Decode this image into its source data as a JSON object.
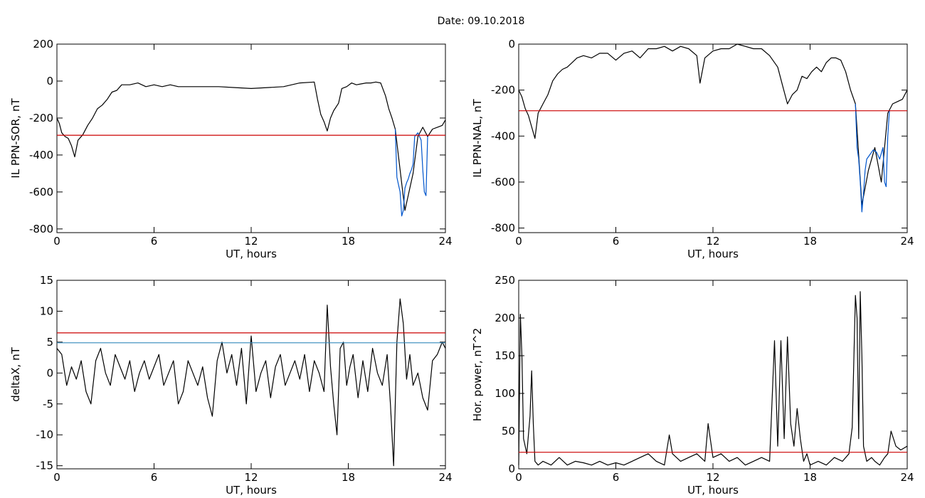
{
  "page": {
    "title": "Date:  09.10.2018"
  },
  "chart_data": [
    {
      "id": "p1",
      "type": "line",
      "xlabel": "UT, hours",
      "ylabel": "IL PPN-SOR, nT",
      "xlim": [
        0,
        24
      ],
      "ylim": [
        -820,
        200
      ],
      "xticks": [
        0,
        6,
        12,
        18,
        24
      ],
      "yticks": [
        -800,
        -600,
        -400,
        -200,
        0,
        200
      ],
      "series": [
        {
          "color": "#000000",
          "x": [
            0,
            0.15,
            0.3,
            0.5,
            0.7,
            0.9,
            1.1,
            1.3,
            1.6,
            1.9,
            2.2,
            2.5,
            2.8,
            3.1,
            3.4,
            3.7,
            4.0,
            4.5,
            5,
            5.5,
            6,
            6.5,
            7,
            7.5,
            8,
            9,
            10,
            11,
            12,
            13,
            14,
            15,
            15.9,
            16.1,
            16.3,
            16.5,
            16.7,
            16.9,
            17.1,
            17.4,
            17.6,
            17.9,
            18.2,
            18.5,
            18.8,
            19.1,
            19.4,
            19.7,
            20.0,
            20.3,
            20.5,
            20.7,
            20.9,
            21.5,
            22,
            22.3,
            22.6,
            22.9,
            23.2,
            23.5,
            23.8,
            24
          ],
          "y": [
            -200,
            -230,
            -280,
            -300,
            -310,
            -350,
            -410,
            -320,
            -290,
            -240,
            -200,
            -150,
            -130,
            -100,
            -60,
            -50,
            -20,
            -20,
            -10,
            -30,
            -20,
            -30,
            -20,
            -30,
            -30,
            -30,
            -30,
            -35,
            -40,
            -35,
            -30,
            -10,
            -5,
            -100,
            -180,
            -220,
            -270,
            -200,
            -160,
            -120,
            -40,
            -30,
            -10,
            -20,
            -15,
            -10,
            -10,
            -5,
            -10,
            -80,
            -150,
            -200,
            -260,
            -700,
            -500,
            -300,
            -250,
            -300,
            -260,
            -250,
            -240,
            -210
          ]
        },
        {
          "color": "#0055cc",
          "x": [
            20.9,
            21.0,
            21.1,
            21.2,
            21.3,
            21.4,
            21.5,
            21.6,
            21.7,
            21.8,
            21.9,
            22.0,
            22.1,
            22.3,
            22.5,
            22.6,
            22.7,
            22.8,
            22.9
          ],
          "y": [
            -260,
            -520,
            -560,
            -600,
            -730,
            -700,
            -580,
            -550,
            -530,
            -500,
            -480,
            -450,
            -300,
            -280,
            -320,
            -480,
            -600,
            -620,
            -300
          ]
        },
        {
          "color": "#cc0000",
          "x": [
            0,
            24
          ],
          "y": [
            -293,
            -293
          ]
        }
      ]
    },
    {
      "id": "p2",
      "type": "line",
      "xlabel": "UT, hours",
      "ylabel": "IL PPN-NAL, nT",
      "xlim": [
        0,
        24
      ],
      "ylim": [
        -820,
        0
      ],
      "xticks": [
        0,
        6,
        12,
        18,
        24
      ],
      "yticks": [
        -800,
        -600,
        -400,
        -200,
        0
      ],
      "series": [
        {
          "color": "#000000",
          "x": [
            0,
            0.2,
            0.4,
            0.6,
            0.8,
            1.0,
            1.2,
            1.5,
            1.8,
            2.1,
            2.4,
            2.7,
            3.0,
            3.3,
            3.6,
            4.0,
            4.5,
            5,
            5.5,
            6,
            6.5,
            7,
            7.5,
            8,
            8.5,
            9,
            9.5,
            10,
            10.5,
            11,
            11.2,
            11.5,
            12,
            12.5,
            13,
            13.5,
            14,
            14.5,
            15,
            15.5,
            16,
            16.3,
            16.6,
            16.9,
            17.2,
            17.5,
            17.8,
            18.1,
            18.4,
            18.7,
            19.0,
            19.3,
            19.6,
            19.9,
            20.2,
            20.5,
            20.8,
            21.2,
            21.6,
            22,
            22.4,
            22.8,
            23.1,
            23.4,
            23.7,
            24
          ],
          "y": [
            -200,
            -230,
            -280,
            -310,
            -360,
            -410,
            -300,
            -260,
            -220,
            -160,
            -130,
            -110,
            -100,
            -80,
            -60,
            -50,
            -60,
            -40,
            -40,
            -70,
            -40,
            -30,
            -60,
            -20,
            -20,
            -10,
            -30,
            -10,
            -20,
            -50,
            -170,
            -60,
            -30,
            -20,
            -20,
            0,
            -10,
            -20,
            -20,
            -50,
            -100,
            -180,
            -260,
            -220,
            -200,
            -140,
            -150,
            -120,
            -100,
            -120,
            -80,
            -60,
            -60,
            -70,
            -120,
            -200,
            -260,
            -700,
            -550,
            -450,
            -600,
            -300,
            -260,
            -250,
            -240,
            -200
          ]
        },
        {
          "color": "#0055cc",
          "x": [
            20.8,
            20.9,
            21.0,
            21.1,
            21.2,
            21.3,
            21.4,
            21.5,
            21.7,
            21.9,
            22.1,
            22.3,
            22.5,
            22.6,
            22.7,
            22.8,
            22.9
          ],
          "y": [
            -260,
            -450,
            -500,
            -600,
            -730,
            -650,
            -550,
            -500,
            -480,
            -460,
            -470,
            -500,
            -450,
            -600,
            -620,
            -400,
            -290
          ]
        },
        {
          "color": "#cc0000",
          "x": [
            0,
            24
          ],
          "y": [
            -290,
            -290
          ]
        }
      ]
    },
    {
      "id": "p3",
      "type": "line",
      "xlabel": "UT, hours",
      "ylabel": "deltaX, nT",
      "xlim": [
        0,
        24
      ],
      "ylim": [
        -15.5,
        15
      ],
      "xticks": [
        0,
        6,
        12,
        18,
        24
      ],
      "yticks": [
        -15,
        -10,
        -5,
        0,
        5,
        10,
        15
      ],
      "series": [
        {
          "color": "#000000",
          "x": [
            0,
            0.3,
            0.6,
            0.9,
            1.2,
            1.5,
            1.8,
            2.1,
            2.4,
            2.7,
            3.0,
            3.3,
            3.6,
            3.9,
            4.2,
            4.5,
            4.8,
            5.1,
            5.4,
            5.7,
            6.0,
            6.3,
            6.6,
            6.9,
            7.2,
            7.5,
            7.8,
            8.1,
            8.4,
            8.7,
            9.0,
            9.3,
            9.6,
            9.9,
            10.2,
            10.5,
            10.8,
            11.1,
            11.4,
            11.7,
            12.0,
            12.3,
            12.6,
            12.9,
            13.2,
            13.5,
            13.8,
            14.1,
            14.4,
            14.7,
            15.0,
            15.3,
            15.6,
            15.9,
            16.2,
            16.5,
            16.7,
            16.9,
            17.1,
            17.3,
            17.5,
            17.7,
            17.9,
            18.1,
            18.3,
            18.6,
            18.9,
            19.2,
            19.5,
            19.8,
            20.1,
            20.4,
            20.6,
            20.8,
            21.0,
            21.2,
            21.4,
            21.6,
            21.8,
            22.0,
            22.3,
            22.6,
            22.9,
            23.2,
            23.5,
            23.8,
            24
          ],
          "y": [
            4,
            3,
            -2,
            1,
            -1,
            2,
            -3,
            -5,
            2,
            4,
            0,
            -2,
            3,
            1,
            -1,
            2,
            -3,
            0,
            2,
            -1,
            1,
            3,
            -2,
            0,
            2,
            -5,
            -3,
            2,
            0,
            -2,
            1,
            -4,
            -7,
            2,
            5,
            0,
            3,
            -2,
            4,
            -5,
            6,
            -3,
            0,
            2,
            -4,
            1,
            3,
            -2,
            0,
            2,
            -1,
            3,
            -3,
            2,
            0,
            -3,
            11,
            1,
            -5,
            -10,
            4,
            5,
            -2,
            1,
            3,
            -4,
            2,
            -3,
            4,
            0,
            -2,
            3,
            -5,
            -15,
            5,
            12,
            8,
            -1,
            3,
            -2,
            0,
            -4,
            -6,
            2,
            3,
            5,
            4
          ]
        },
        {
          "color": "#cc0000",
          "x": [
            0,
            24
          ],
          "y": [
            6.5,
            6.5
          ]
        },
        {
          "color": "#3388bb",
          "x": [
            0,
            24
          ],
          "y": [
            4.9,
            4.9
          ]
        }
      ]
    },
    {
      "id": "p4",
      "type": "line",
      "xlabel": "UT, hours",
      "ylabel": "Hor. power, nT^2",
      "xlim": [
        0,
        24
      ],
      "ylim": [
        0,
        250
      ],
      "xticks": [
        0,
        6,
        12,
        18,
        24
      ],
      "yticks": [
        0,
        50,
        100,
        150,
        200,
        250
      ],
      "series": [
        {
          "color": "#000000",
          "x": [
            0,
            0.1,
            0.2,
            0.3,
            0.5,
            0.7,
            0.8,
            0.9,
            1.0,
            1.2,
            1.5,
            2,
            2.5,
            3,
            3.5,
            4,
            4.5,
            5,
            5.5,
            6,
            6.5,
            7,
            7.5,
            8,
            8.5,
            9,
            9.3,
            9.5,
            10,
            10.5,
            11,
            11.5,
            11.7,
            12,
            12.5,
            13,
            13.5,
            14,
            14.5,
            15,
            15.5,
            15.8,
            16.0,
            16.2,
            16.4,
            16.6,
            16.8,
            17.0,
            17.2,
            17.4,
            17.6,
            17.8,
            18.0,
            18.5,
            19,
            19.5,
            20,
            20.4,
            20.6,
            20.8,
            20.9,
            21.0,
            21.1,
            21.2,
            21.3,
            21.5,
            21.8,
            22.0,
            22.3,
            22.6,
            22.8,
            23.0,
            23.3,
            23.6,
            24
          ],
          "y": [
            5,
            205,
            150,
            40,
            20,
            70,
            130,
            60,
            10,
            5,
            10,
            5,
            15,
            5,
            10,
            8,
            5,
            10,
            5,
            8,
            5,
            10,
            15,
            20,
            10,
            5,
            45,
            20,
            10,
            15,
            20,
            10,
            60,
            15,
            20,
            10,
            15,
            5,
            10,
            15,
            10,
            170,
            30,
            170,
            40,
            175,
            60,
            30,
            80,
            40,
            10,
            20,
            5,
            10,
            5,
            15,
            10,
            20,
            55,
            230,
            200,
            40,
            235,
            150,
            30,
            10,
            15,
            10,
            5,
            15,
            20,
            50,
            30,
            25,
            30
          ]
        },
        {
          "color": "#cc0000",
          "x": [
            0,
            24
          ],
          "y": [
            22,
            22
          ]
        }
      ]
    }
  ]
}
